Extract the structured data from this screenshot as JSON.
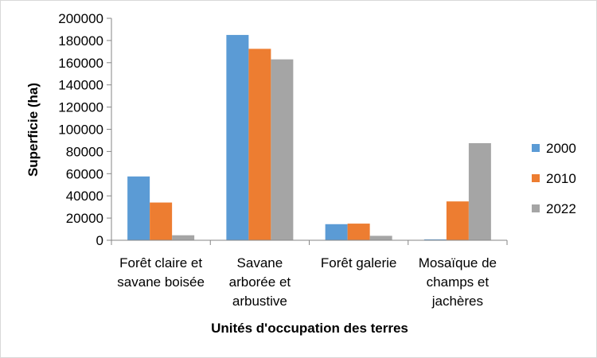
{
  "chart_data": {
    "type": "bar",
    "categories": [
      [
        "Forêt claire et",
        "savane boisée"
      ],
      [
        "Savane",
        "arborée et",
        "arbustive"
      ],
      [
        "Forêt galerie"
      ],
      [
        "Mosaïque de",
        "champs et",
        "jachères"
      ]
    ],
    "series": [
      {
        "name": "2000",
        "color": "#5b9bd5",
        "values": [
          57500,
          185000,
          14500,
          800
        ]
      },
      {
        "name": "2010",
        "color": "#ed7d31",
        "values": [
          34000,
          172500,
          15000,
          35000
        ]
      },
      {
        "name": "2022",
        "color": "#a5a5a5",
        "values": [
          4500,
          163000,
          4000,
          87500
        ]
      }
    ],
    "ylim": [
      0,
      200000
    ],
    "yticks": [
      "0",
      "20000",
      "40000",
      "60000",
      "80000",
      "100000",
      "120000",
      "140000",
      "160000",
      "180000",
      "200000"
    ],
    "xlabel": "Unités d'occupation des terres",
    "ylabel": "Superficie (ha)",
    "legend": "right",
    "grid": false
  }
}
